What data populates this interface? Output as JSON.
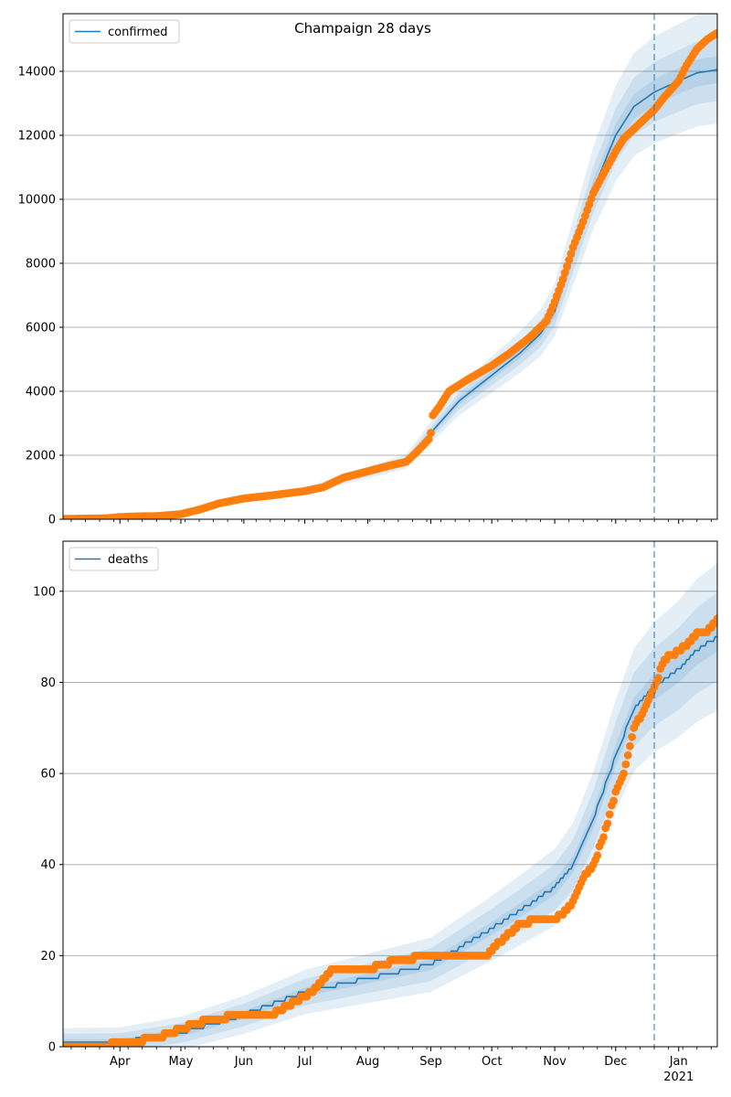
{
  "title": "Champaign 28 days",
  "colors": {
    "model_line": "#1f77b4",
    "observed": "#ff7f0e",
    "band": "#1f77b4",
    "grid": "#b0b0b0",
    "forecast_line": "#1f77b4"
  },
  "x_axis": {
    "range": [
      "2020-03-04",
      "2021-01-20"
    ],
    "month_ticks": [
      {
        "date": "2020-04-01",
        "label": "Apr"
      },
      {
        "date": "2020-05-01",
        "label": "May"
      },
      {
        "date": "2020-06-01",
        "label": "Jun"
      },
      {
        "date": "2020-07-01",
        "label": "Jul"
      },
      {
        "date": "2020-08-01",
        "label": "Aug"
      },
      {
        "date": "2020-09-01",
        "label": "Sep"
      },
      {
        "date": "2020-10-01",
        "label": "Oct"
      },
      {
        "date": "2020-11-01",
        "label": "Nov"
      },
      {
        "date": "2020-12-01",
        "label": "Dec"
      },
      {
        "date": "2021-01-01",
        "label": "Jan",
        "sublabel": "2021"
      }
    ],
    "forecast_start": "2020-12-20"
  },
  "chart_data": [
    {
      "type": "line",
      "legend": "confirmed",
      "legend_position": "upper-left",
      "ylim": [
        0,
        15800
      ],
      "yticks": [
        0,
        2000,
        4000,
        6000,
        8000,
        10000,
        12000,
        14000
      ],
      "grid": "horizontal",
      "model": {
        "dates": [
          "2020-03-04",
          "2020-04-01",
          "2020-05-01",
          "2020-05-15",
          "2020-06-01",
          "2020-07-01",
          "2020-07-15",
          "2020-08-01",
          "2020-08-20",
          "2020-09-01",
          "2020-09-15",
          "2020-10-01",
          "2020-10-15",
          "2020-10-25",
          "2020-11-01",
          "2020-11-10",
          "2020-11-20",
          "2020-12-01",
          "2020-12-10",
          "2020-12-20",
          "2021-01-01",
          "2021-01-10",
          "2021-01-20"
        ],
        "values": [
          10,
          40,
          180,
          450,
          650,
          880,
          1150,
          1450,
          1800,
          2700,
          3700,
          4500,
          5200,
          5800,
          6500,
          8300,
          10300,
          12000,
          12900,
          13350,
          13700,
          13950,
          14050
        ]
      },
      "bands": [
        {
          "lower_ratio": 0.97,
          "upper_ratio": 1.03
        },
        {
          "lower_ratio": 0.93,
          "upper_ratio": 1.07
        },
        {
          "lower_ratio": 0.88,
          "upper_ratio": 1.13
        }
      ],
      "observed": {
        "dates": [
          "2020-03-04",
          "2020-03-25",
          "2020-04-01",
          "2020-04-10",
          "2020-04-20",
          "2020-05-01",
          "2020-05-10",
          "2020-05-20",
          "2020-06-01",
          "2020-06-15",
          "2020-07-01",
          "2020-07-10",
          "2020-07-20",
          "2020-08-01",
          "2020-08-10",
          "2020-08-20",
          "2020-08-25",
          "2020-08-31",
          "2020-09-01",
          "2020-09-02",
          "2020-09-05",
          "2020-09-10",
          "2020-09-20",
          "2020-10-01",
          "2020-10-10",
          "2020-10-20",
          "2020-10-28",
          "2020-11-01",
          "2020-11-05",
          "2020-11-10",
          "2020-11-15",
          "2020-11-20",
          "2020-11-25",
          "2020-12-01",
          "2020-12-05",
          "2020-12-10",
          "2020-12-15",
          "2020-12-20",
          "2020-12-25",
          "2021-01-01",
          "2021-01-05",
          "2021-01-10",
          "2021-01-15",
          "2021-01-20"
        ],
        "values": [
          10,
          30,
          70,
          90,
          100,
          160,
          300,
          500,
          650,
          750,
          880,
          1000,
          1300,
          1500,
          1650,
          1800,
          2100,
          2500,
          2700,
          3250,
          3500,
          4000,
          4400,
          4800,
          5200,
          5700,
          6200,
          6800,
          7500,
          8500,
          9300,
          10200,
          10800,
          11500,
          11900,
          12200,
          12500,
          12800,
          13200,
          13700,
          14200,
          14700,
          15000,
          15200
        ]
      }
    },
    {
      "type": "line",
      "legend": "deaths",
      "legend_position": "upper-left",
      "ylim": [
        0,
        111
      ],
      "yticks": [
        0,
        20,
        40,
        60,
        80,
        100
      ],
      "grid": "horizontal",
      "model": {
        "dates": [
          "2020-03-04",
          "2020-04-01",
          "2020-05-01",
          "2020-06-01",
          "2020-07-01",
          "2020-08-01",
          "2020-09-01",
          "2020-10-01",
          "2020-10-15",
          "2020-11-01",
          "2020-11-10",
          "2020-11-20",
          "2020-12-01",
          "2020-12-10",
          "2020-12-20",
          "2021-01-01",
          "2021-01-10",
          "2021-01-20"
        ],
        "values": [
          1,
          1,
          3,
          7,
          12,
          15,
          18,
          26,
          30,
          35,
          40,
          50,
          64,
          74,
          79,
          83,
          87,
          90
        ]
      },
      "bands": [
        {
          "lower_abs": 1,
          "upper_abs": 1
        },
        {
          "lower_abs": 3,
          "upper_abs": 3
        },
        {
          "lower_abs": 5,
          "upper_abs": 5
        }
      ],
      "observed": {
        "dates": [
          "2020-03-04",
          "2020-03-20",
          "2020-04-05",
          "2020-04-20",
          "2020-05-01",
          "2020-05-15",
          "2020-06-01",
          "2020-06-15",
          "2020-07-01",
          "2020-07-05",
          "2020-07-15",
          "2020-08-01",
          "2020-08-15",
          "2020-09-01",
          "2020-09-15",
          "2020-09-28",
          "2020-10-01",
          "2020-10-05",
          "2020-10-15",
          "2020-10-25",
          "2020-11-01",
          "2020-11-05",
          "2020-11-10",
          "2020-11-15",
          "2020-11-20",
          "2020-11-25",
          "2020-12-01",
          "2020-12-05",
          "2020-12-10",
          "2020-12-15",
          "2020-12-20",
          "2020-12-25",
          "2021-01-01",
          "2021-01-05",
          "2021-01-10",
          "2021-01-15",
          "2021-01-20"
        ],
        "values": [
          0,
          0,
          1,
          2,
          4,
          6,
          7,
          7,
          11,
          12,
          17,
          17,
          19,
          20,
          20,
          20,
          21,
          23,
          27,
          28,
          28,
          29,
          32,
          37,
          40,
          46,
          56,
          60,
          70,
          74,
          79,
          85,
          87,
          88,
          91,
          91,
          94
        ]
      }
    }
  ]
}
